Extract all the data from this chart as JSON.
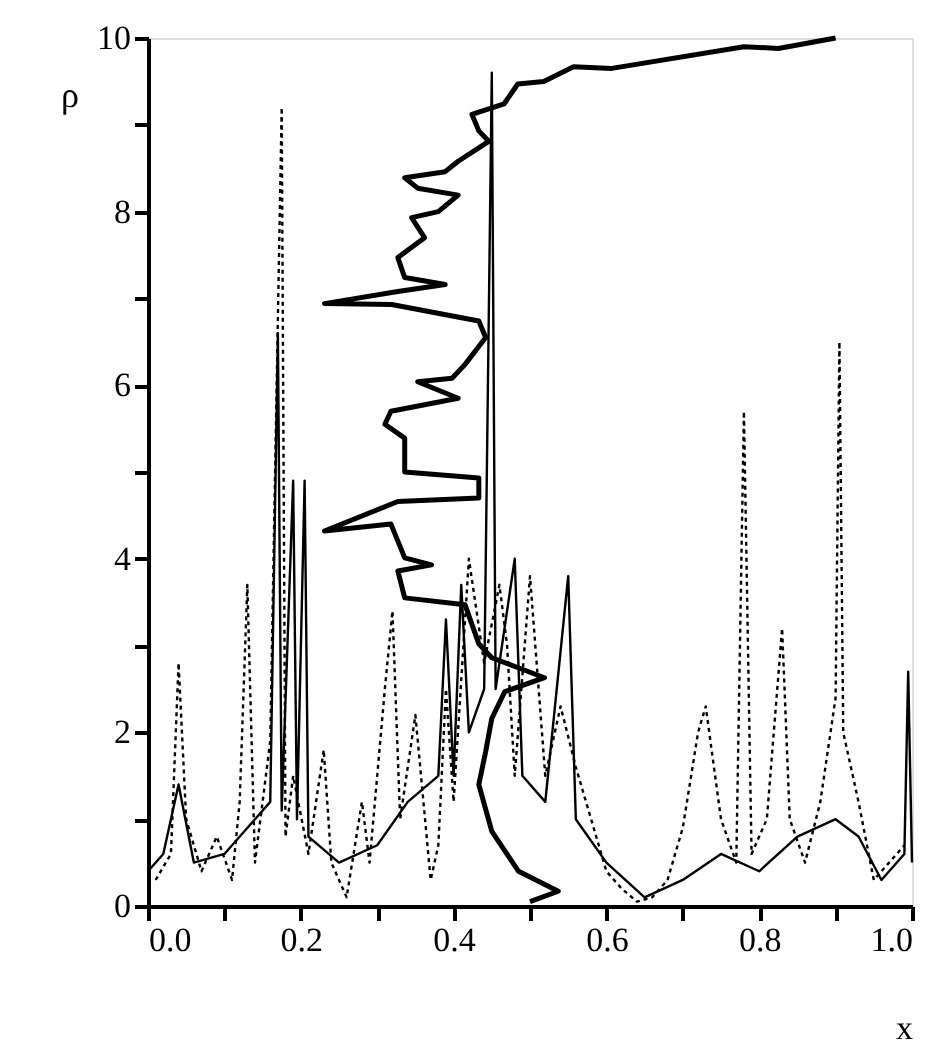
{
  "chart_data": {
    "type": "line",
    "xlabel": "x",
    "ylabel": "ρ",
    "xlim": [
      0,
      1
    ],
    "ylim": [
      0,
      10
    ],
    "xticks": [
      {
        "value": 0,
        "label": "0.0"
      },
      {
        "value": 0.1,
        "label": null
      },
      {
        "value": 0.2,
        "label": "0.2"
      },
      {
        "value": 0.3,
        "label": null
      },
      {
        "value": 0.4,
        "label": "0.4"
      },
      {
        "value": 0.5,
        "label": null
      },
      {
        "value": 0.6,
        "label": "0.6"
      },
      {
        "value": 0.7,
        "label": null
      },
      {
        "value": 0.8,
        "label": "0.8"
      },
      {
        "value": 0.9,
        "label": null
      },
      {
        "value": 1,
        "label": "1.0"
      }
    ],
    "yticks": [
      0,
      {
        "value": 1,
        "label": null
      },
      2,
      {
        "value": 3,
        "label": null
      },
      4,
      {
        "value": 5,
        "label": null
      },
      6,
      {
        "value": 7,
        "label": null
      },
      8,
      {
        "value": 9,
        "label": null
      },
      10
    ],
    "grid": false,
    "marker": "none",
    "series": [
      {
        "color": "#000000",
        "line_style": "dotted",
        "x": [
          0.01,
          0.03,
          0.04,
          0.05,
          0.07,
          0.09,
          0.11,
          0.12,
          0.13,
          0.14,
          0.15,
          0.16,
          0.175,
          0.18,
          0.19,
          0.21,
          0.23,
          0.24,
          0.26,
          0.28,
          0.29,
          0.31,
          0.32,
          0.33,
          0.35,
          0.37,
          0.38,
          0.39,
          0.4,
          0.42,
          0.44,
          0.46,
          0.47,
          0.48,
          0.5,
          0.52,
          0.54,
          0.56,
          0.58,
          0.6,
          0.62,
          0.64,
          0.66,
          0.68,
          0.7,
          0.72,
          0.73,
          0.75,
          0.77,
          0.78,
          0.79,
          0.81,
          0.83,
          0.84,
          0.86,
          0.88,
          0.9,
          0.905,
          0.91,
          0.93,
          0.95,
          0.97,
          0.99
        ],
        "values": [
          0.3,
          0.6,
          2.8,
          1.0,
          0.4,
          0.8,
          0.3,
          1.2,
          3.7,
          0.5,
          1.2,
          1.9,
          9.2,
          0.8,
          1.5,
          0.6,
          1.8,
          0.5,
          0.1,
          1.2,
          0.5,
          2.5,
          3.4,
          1.0,
          2.2,
          0.3,
          0.7,
          2.5,
          1.2,
          4.0,
          2.8,
          3.7,
          3.0,
          1.5,
          3.8,
          1.5,
          2.3,
          1.6,
          1.0,
          0.4,
          0.2,
          0.05,
          0.1,
          0.3,
          0.9,
          2.0,
          2.3,
          1.0,
          0.5,
          5.7,
          0.6,
          1.0,
          3.2,
          1.0,
          0.5,
          1.2,
          2.4,
          6.5,
          2.0,
          1.2,
          0.3,
          0.5,
          0.7
        ]
      },
      {
        "color": "#000000",
        "line_style": "solid",
        "x": [
          0.0,
          0.02,
          0.04,
          0.06,
          0.1,
          0.14,
          0.16,
          0.17,
          0.175,
          0.19,
          0.195,
          0.205,
          0.21,
          0.25,
          0.3,
          0.34,
          0.38,
          0.39,
          0.4,
          0.41,
          0.42,
          0.44,
          0.45,
          0.455,
          0.48,
          0.49,
          0.52,
          0.55,
          0.56,
          0.6,
          0.65,
          0.7,
          0.75,
          0.8,
          0.85,
          0.9,
          0.93,
          0.96,
          0.99,
          0.995,
          1.0
        ],
        "values": [
          0.4,
          0.6,
          1.4,
          0.5,
          0.6,
          1.0,
          1.2,
          6.6,
          1.1,
          4.9,
          1.0,
          4.9,
          0.8,
          0.5,
          0.7,
          1.2,
          1.5,
          3.3,
          1.5,
          3.7,
          2.0,
          2.5,
          9.6,
          2.5,
          4.0,
          1.5,
          1.2,
          3.8,
          1.0,
          0.5,
          0.1,
          0.3,
          0.6,
          0.4,
          0.8,
          1.0,
          0.8,
          0.3,
          0.6,
          2.7,
          0.5
        ]
      },
      {
        "color": "#000000",
        "line_style": "solid",
        "x": [
          0.9,
          0.825,
          0.78,
          0.607,
          0.557,
          0.518,
          0.484,
          0.466,
          0.424,
          0.433,
          0.446,
          0.406,
          0.389,
          0.336,
          0.353,
          0.406,
          0.38,
          0.345,
          0.362,
          0.327,
          0.336,
          0.389,
          0.327,
          0.231,
          0.319,
          0.433,
          0.442,
          0.415,
          0.398,
          0.353,
          0.406,
          0.318,
          0.31,
          0.336,
          0.336,
          0.433,
          0.433,
          0.327,
          0.231,
          0.318,
          0.336,
          0.371,
          0.327,
          0.336,
          0.415,
          0.433,
          0.45,
          0.519,
          0.467,
          0.45,
          0.442,
          0.433,
          0.45,
          0.485,
          0.537,
          0.5
        ],
        "values": [
          10.0,
          9.88,
          9.9,
          9.65,
          9.67,
          9.5,
          9.47,
          9.24,
          9.12,
          8.93,
          8.81,
          8.58,
          8.46,
          8.39,
          8.27,
          8.19,
          8.0,
          7.93,
          7.7,
          7.47,
          7.24,
          7.16,
          7.08,
          6.94,
          6.93,
          6.74,
          6.55,
          6.24,
          6.08,
          6.04,
          5.85,
          5.7,
          5.55,
          5.39,
          5.0,
          4.93,
          4.7,
          4.66,
          4.32,
          4.4,
          4.01,
          3.93,
          3.86,
          3.55,
          3.47,
          3.02,
          2.86,
          2.63,
          2.47,
          2.16,
          1.78,
          1.4,
          0.86,
          0.4,
          0.17,
          0.05
        ]
      }
    ]
  }
}
